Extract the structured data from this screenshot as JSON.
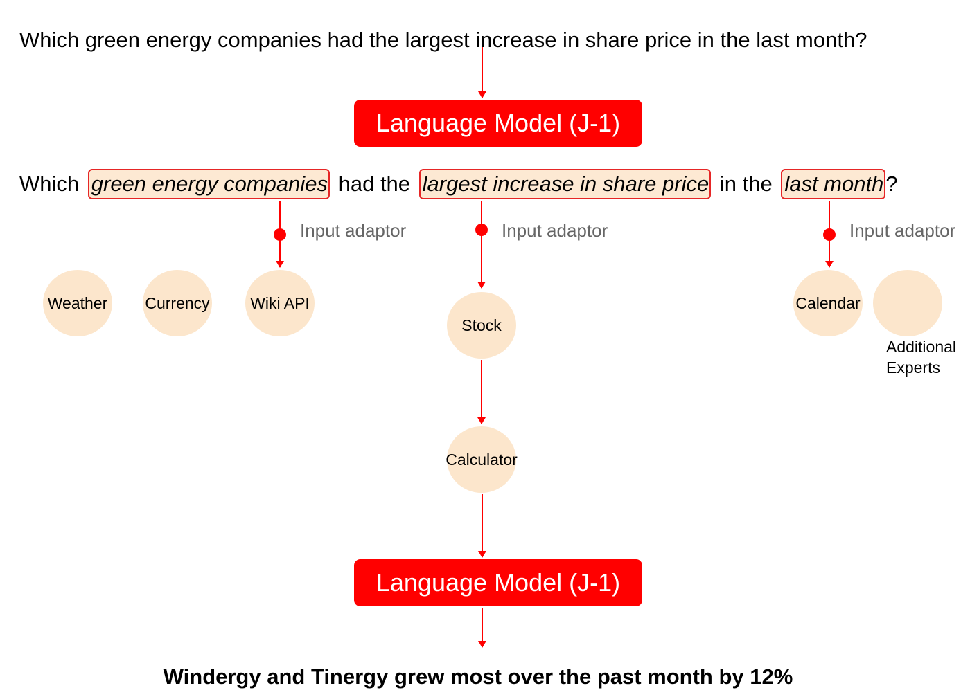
{
  "query": "Which green energy companies had the largest increase in share price in the last month?",
  "language_model_label": "Language Model (J-1)",
  "annotated_query": {
    "prefix": "Which",
    "entity_1": "green energy  companies",
    "middle_1": "had the",
    "entity_2": "largest increase in share price",
    "middle_2": "in the",
    "entity_3": "last month",
    "suffix": "?"
  },
  "adaptor_label": "Input adaptor",
  "experts": {
    "weather": "Weather",
    "currency": "Currency",
    "wiki_api": "Wiki API",
    "stock": "Stock",
    "calculator": "Calculator",
    "calendar": "Calendar",
    "additional_line1": "Additional",
    "additional_line2": "Experts"
  },
  "answer": "Windergy and Tinergy grew most over the past month by 12%",
  "colors": {
    "accent": "#ff0000",
    "highlight_fill": "#fde9d3",
    "expert_fill": "#fce6cc",
    "adaptor_text": "#666666"
  }
}
